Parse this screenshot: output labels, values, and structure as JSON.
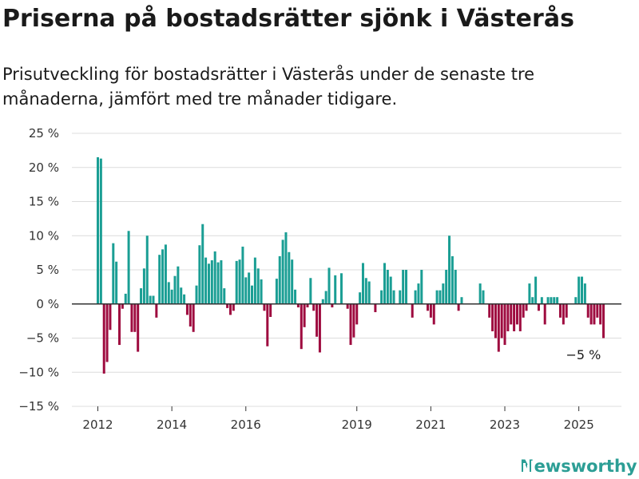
{
  "title": "Priserna på bostadsrätter sjönk i Västerås",
  "subtitle": "Prisutveckling för bostadsrätter i Västerås under de senaste tre månaderna, jämfört med tre månader tidigare.",
  "brand": {
    "name": "Newsworthy",
    "color": "#2c9e95",
    "icon": "bar-chart-icon"
  },
  "chart_data": {
    "type": "bar",
    "x_unit": "month",
    "x_start": "2012-01",
    "ylim": [
      -15,
      25
    ],
    "yticks": [
      -15,
      -10,
      -5,
      0,
      5,
      10,
      15,
      20,
      25
    ],
    "ytick_labels": [
      "−15 %",
      "−10 %",
      "−5 %",
      "0 %",
      "5 %",
      "10 %",
      "15 %",
      "20 %",
      "25 %"
    ],
    "xticks": [
      {
        "label": "2012",
        "month": "2012-01"
      },
      {
        "label": "2014",
        "month": "2014-01"
      },
      {
        "label": "2016",
        "month": "2016-01"
      },
      {
        "label": "2019",
        "month": "2019-01"
      },
      {
        "label": "2021",
        "month": "2021-01"
      },
      {
        "label": "2023",
        "month": "2023-01"
      },
      {
        "label": "2025",
        "month": "2025-01"
      }
    ],
    "positive_color": "#1a9e94",
    "negative_color": "#9e0b3f",
    "grid": true,
    "annotation": {
      "label": "−5 %",
      "month": "2025-03"
    },
    "values": [
      21.5,
      21.3,
      -10.2,
      -8.5,
      -3.8,
      8.9,
      6.2,
      -6,
      -0.7,
      1.5,
      10.7,
      -4.1,
      -4.1,
      -7,
      2.3,
      5.2,
      10,
      1.2,
      1.2,
      -2,
      7.2,
      8,
      8.7,
      3.2,
      2.1,
      4.1,
      5.5,
      2.4,
      1.4,
      -1.6,
      -3.3,
      -4.1,
      2.7,
      8.6,
      11.7,
      6.8,
      5.9,
      6.4,
      7.7,
      6.1,
      6.4,
      2.3,
      -0.6,
      -1.6,
      -1,
      6.3,
      6.5,
      8.4,
      3.9,
      4.6,
      2.7,
      6.8,
      5.2,
      3.6,
      -1,
      -6.2,
      -1.9,
      0,
      3.7,
      7,
      9.4,
      10.5,
      7.6,
      6.5,
      2.1,
      -0.5,
      -6.6,
      -3.4,
      -0.5,
      3.8,
      -1,
      -4.8,
      -7.1,
      0.7,
      1.9,
      5.3,
      -0.5,
      4.2,
      0,
      4.5,
      0,
      -0.7,
      -6,
      -4.9,
      -3,
      1.7,
      6,
      3.8,
      3.3,
      0,
      -1.2,
      0,
      2,
      6,
      5,
      4,
      2,
      0,
      2,
      5,
      5,
      0,
      -2,
      2,
      3,
      5,
      0,
      -1,
      -2,
      -3,
      2,
      2,
      3,
      5,
      10,
      7,
      5,
      -1,
      1,
      0,
      0,
      0,
      0,
      0,
      3,
      2,
      0,
      -2,
      -4,
      -5,
      -7,
      -5,
      -6,
      -4,
      -3,
      -4,
      -3,
      -4,
      -2,
      -1,
      3,
      1,
      4,
      -1,
      1,
      -3,
      1,
      1,
      1,
      1,
      -2,
      -3,
      -2,
      0,
      0,
      1,
      4,
      4,
      3,
      -2,
      -3,
      -3,
      -2,
      -3,
      -5
    ]
  }
}
